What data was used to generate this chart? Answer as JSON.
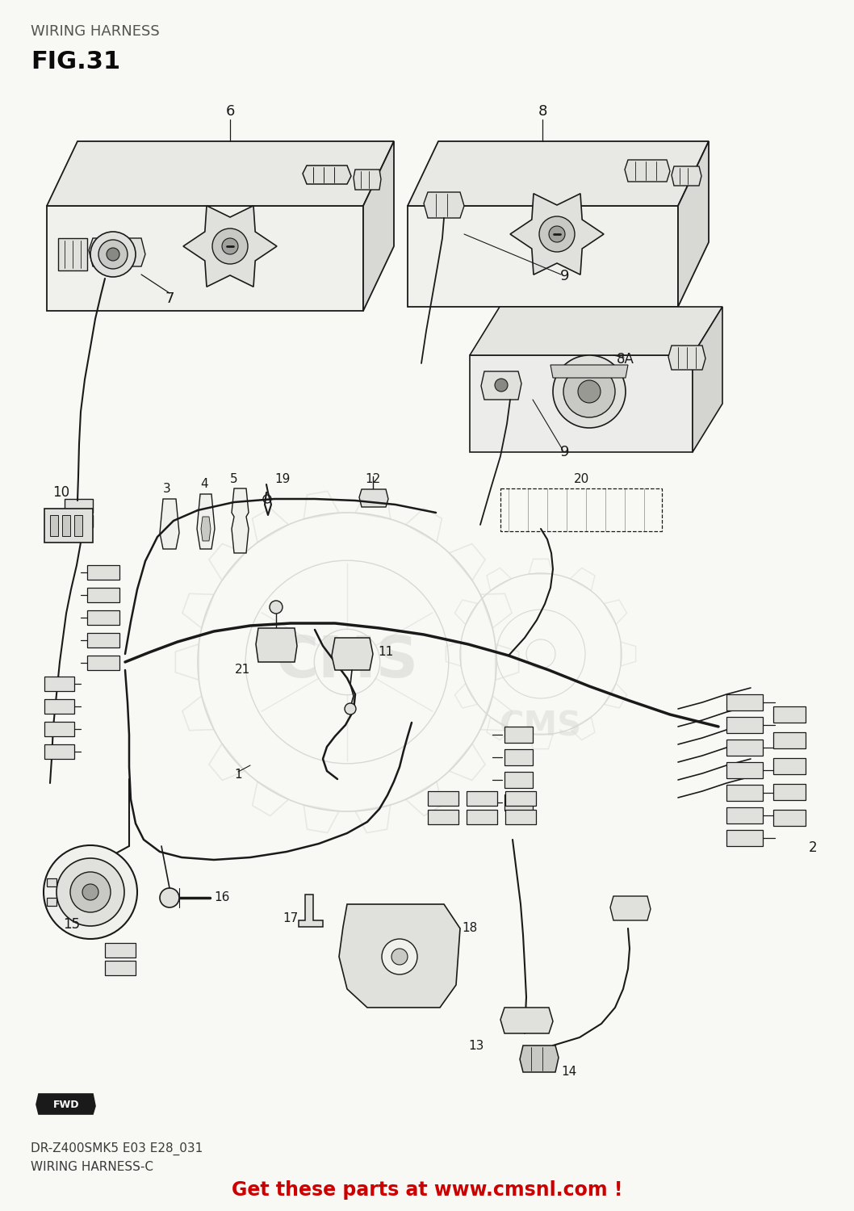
{
  "title_top": "WIRING HARNESS",
  "fig_label": "FIG.31",
  "subtitle1": "DR-Z400SMK5 E03 E28_031",
  "subtitle2": "WIRING HARNESS-C",
  "promo_text": "Get these parts at www.cmsnl.com !",
  "bg_color": "#f8f8f4",
  "line_color": "#1a1a1a",
  "text_color": "#2a2a2a",
  "promo_color": "#cc0000",
  "light_fill": "#f0f0ec",
  "med_fill": "#e0e0dc",
  "dark_fill": "#c8c8c4",
  "wm_color": "#d8d8d4"
}
